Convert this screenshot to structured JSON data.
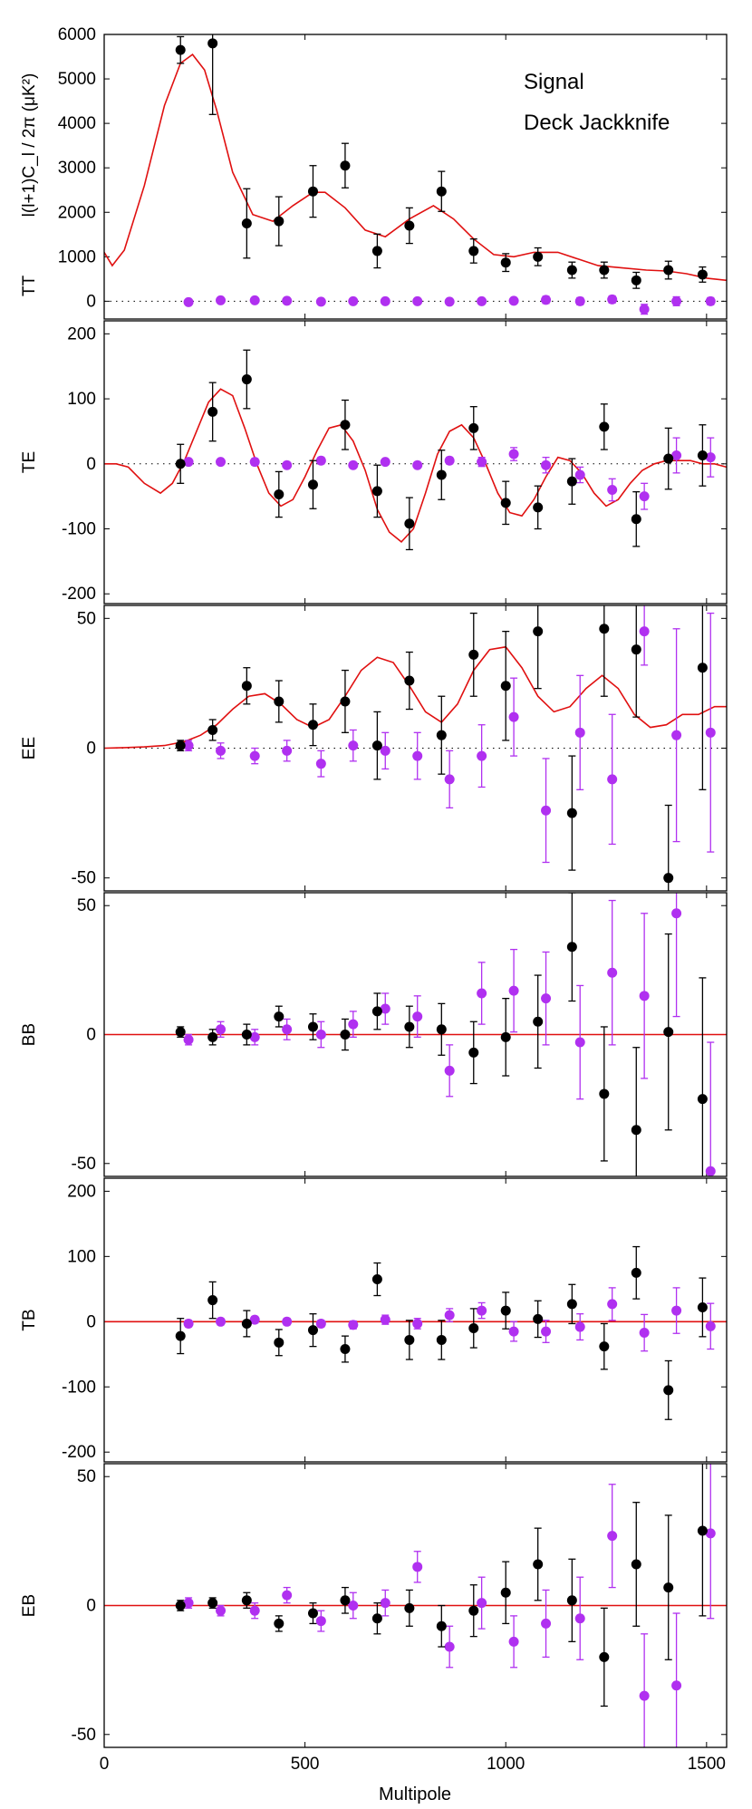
{
  "colors": {
    "signal": "#000000",
    "jackknife": "#b030f0",
    "model": "#e01010"
  },
  "legend": {
    "signal": "Signal",
    "jackknife": "Deck Jackknife"
  },
  "x_axis": {
    "label": "Multipole",
    "ticks": [
      0,
      500,
      1000,
      1500
    ],
    "xlim": [
      0,
      1550
    ]
  },
  "chart_data": [
    {
      "type": "scatter",
      "name": "TT",
      "ylabel_prefix": "TT",
      "ylabel_unit": "l(l+1)C_l / 2π (μK²)",
      "ylim": [
        -400,
        6000
      ],
      "yticks": [
        0,
        1000,
        2000,
        3000,
        4000,
        5000,
        6000
      ],
      "model": {
        "x": [
          0,
          20,
          50,
          100,
          150,
          190,
          220,
          250,
          280,
          320,
          370,
          420,
          470,
          520,
          550,
          600,
          650,
          700,
          760,
          820,
          870,
          920,
          970,
          1020,
          1070,
          1130,
          1180,
          1230,
          1290,
          1350,
          1400,
          1450,
          1500,
          1550
        ],
        "y": [
          1100,
          800,
          1150,
          2600,
          4400,
          5350,
          5550,
          5200,
          4300,
          2900,
          1950,
          1800,
          2150,
          2450,
          2450,
          2100,
          1600,
          1450,
          1850,
          2150,
          1850,
          1400,
          1050,
          1000,
          1100,
          1100,
          950,
          800,
          750,
          700,
          680,
          620,
          520,
          470
        ]
      },
      "signal": {
        "x": [
          190,
          270,
          355,
          435,
          520,
          600,
          680,
          760,
          840,
          920,
          1000,
          1080,
          1165,
          1245,
          1325,
          1405,
          1490
        ],
        "y": [
          5650,
          5800,
          1750,
          1800,
          2470,
          3050,
          1130,
          1700,
          2470,
          1130,
          870,
          1000,
          700,
          700,
          470,
          700,
          600
        ],
        "err": [
          300,
          1600,
          780,
          550,
          580,
          500,
          380,
          400,
          450,
          270,
          200,
          200,
          180,
          180,
          180,
          200,
          170
        ]
      },
      "jackknife": {
        "x": [
          210,
          290,
          375,
          455,
          540,
          620,
          700,
          780,
          860,
          940,
          1020,
          1100,
          1185,
          1265,
          1345,
          1425,
          1510
        ],
        "y": [
          -20,
          20,
          20,
          10,
          -10,
          0,
          0,
          0,
          -10,
          0,
          10,
          30,
          0,
          40,
          -180,
          0,
          0
        ],
        "err": [
          50,
          50,
          50,
          50,
          50,
          50,
          50,
          50,
          50,
          50,
          50,
          80,
          80,
          80,
          110,
          100,
          80
        ]
      }
    },
    {
      "type": "scatter",
      "name": "TE",
      "ylabel_prefix": "TE",
      "ylabel_unit": "",
      "ylim": [
        -215,
        220
      ],
      "yticks": [
        -200,
        -100,
        0,
        100,
        200
      ],
      "model": {
        "x": [
          0,
          30,
          60,
          100,
          140,
          170,
          200,
          230,
          260,
          290,
          320,
          350,
          380,
          410,
          440,
          470,
          500,
          530,
          560,
          590,
          620,
          650,
          680,
          710,
          740,
          770,
          800,
          830,
          860,
          890,
          920,
          950,
          980,
          1010,
          1040,
          1070,
          1100,
          1130,
          1160,
          1190,
          1220,
          1250,
          1280,
          1310,
          1340,
          1370,
          1400,
          1430,
          1460,
          1490,
          1520,
          1550
        ],
        "y": [
          0,
          0,
          -5,
          -30,
          -45,
          -30,
          5,
          50,
          95,
          115,
          105,
          55,
          0,
          -45,
          -65,
          -55,
          -20,
          20,
          55,
          60,
          35,
          -10,
          -70,
          -105,
          -120,
          -100,
          -45,
          15,
          50,
          60,
          40,
          0,
          -45,
          -75,
          -80,
          -55,
          -20,
          10,
          5,
          -15,
          -45,
          -65,
          -55,
          -30,
          -10,
          0,
          5,
          5,
          5,
          0,
          0,
          -5
        ]
      },
      "signal": {
        "x": [
          190,
          270,
          355,
          435,
          520,
          600,
          680,
          760,
          840,
          920,
          1000,
          1080,
          1165,
          1245,
          1325,
          1405,
          1490
        ],
        "y": [
          0,
          80,
          130,
          -47,
          -32,
          60,
          -42,
          -92,
          -17,
          55,
          -60,
          -67,
          -27,
          57,
          -85,
          8,
          13
        ],
        "err": [
          30,
          45,
          45,
          35,
          37,
          38,
          40,
          40,
          38,
          33,
          33,
          33,
          35,
          35,
          42,
          47,
          47
        ]
      },
      "jackknife": {
        "x": [
          210,
          290,
          375,
          455,
          540,
          620,
          700,
          780,
          860,
          940,
          1020,
          1100,
          1185,
          1265,
          1345,
          1425,
          1510
        ],
        "y": [
          3,
          3,
          3,
          -2,
          5,
          -2,
          3,
          -2,
          5,
          3,
          15,
          -2,
          -17,
          -40,
          -50,
          13,
          10
        ],
        "err": [
          4,
          4,
          5,
          4,
          5,
          4,
          4,
          4,
          5,
          7,
          10,
          12,
          12,
          17,
          20,
          27,
          30
        ]
      }
    },
    {
      "type": "scatter",
      "name": "EE",
      "ylabel_prefix": "EE",
      "ylabel_unit": "",
      "ylim": [
        -55,
        55
      ],
      "yticks": [
        -50,
        0,
        50
      ],
      "model": {
        "x": [
          0,
          50,
          100,
          150,
          200,
          240,
          280,
          320,
          360,
          400,
          440,
          480,
          520,
          560,
          600,
          640,
          680,
          720,
          760,
          800,
          840,
          880,
          920,
          960,
          1000,
          1040,
          1080,
          1120,
          1160,
          1200,
          1240,
          1280,
          1320,
          1360,
          1400,
          1440,
          1480,
          1520,
          1550
        ],
        "y": [
          0,
          0.2,
          0.5,
          1,
          2.5,
          5,
          9,
          15,
          20,
          21,
          17,
          11,
          8,
          11,
          20,
          30,
          35,
          33,
          24,
          14,
          10,
          17,
          30,
          38,
          39,
          31,
          20,
          14,
          16,
          23,
          28,
          23,
          13,
          8,
          9,
          13,
          13,
          16,
          16
        ]
      },
      "signal": {
        "x": [
          190,
          270,
          355,
          435,
          520,
          600,
          680,
          760,
          840,
          920,
          1000,
          1080,
          1165,
          1245,
          1325,
          1405,
          1490
        ],
        "y": [
          1,
          7,
          24,
          18,
          9,
          18,
          1,
          26,
          5,
          36,
          24,
          45,
          -25,
          46,
          38,
          -50,
          31
        ],
        "err": [
          2,
          4,
          7,
          8,
          8,
          12,
          13,
          11,
          15,
          16,
          21,
          22,
          22,
          26,
          26,
          28,
          47
        ]
      },
      "jackknife": {
        "x": [
          210,
          290,
          375,
          455,
          540,
          620,
          700,
          780,
          860,
          940,
          1020,
          1100,
          1185,
          1265,
          1345,
          1425,
          1510
        ],
        "y": [
          1,
          -1,
          -3,
          -1,
          -6,
          1,
          -1,
          -3,
          -12,
          -3,
          12,
          -24,
          6,
          -12,
          45,
          5,
          6
        ],
        "err": [
          2,
          3,
          3,
          4,
          5,
          6,
          7,
          9,
          11,
          12,
          15,
          20,
          22,
          25,
          13,
          41,
          46
        ]
      }
    },
    {
      "type": "scatter",
      "name": "BB",
      "ylabel_prefix": "BB",
      "ylabel_unit": "",
      "ylim": [
        -55,
        55
      ],
      "yticks": [
        -50,
        0,
        50
      ],
      "model": {
        "x": [
          0,
          1550
        ],
        "y": [
          0,
          0
        ]
      },
      "signal": {
        "x": [
          190,
          270,
          355,
          435,
          520,
          600,
          680,
          760,
          840,
          920,
          1000,
          1080,
          1165,
          1245,
          1325,
          1405,
          1490
        ],
        "y": [
          1,
          -1,
          0,
          7,
          3,
          0,
          9,
          3,
          2,
          -7,
          -1,
          5,
          34,
          -23,
          -37,
          1,
          -25
        ],
        "err": [
          2,
          3,
          4,
          4,
          5,
          6,
          7,
          8,
          10,
          12,
          15,
          18,
          21,
          26,
          32,
          38,
          47
        ]
      },
      "jackknife": {
        "x": [
          210,
          290,
          375,
          455,
          540,
          620,
          700,
          780,
          860,
          940,
          1020,
          1100,
          1185,
          1265,
          1345,
          1425,
          1510
        ],
        "y": [
          -2,
          2,
          -1,
          2,
          0,
          4,
          10,
          7,
          -14,
          16,
          17,
          14,
          -3,
          24,
          15,
          47,
          -53
        ],
        "err": [
          2,
          3,
          3,
          4,
          5,
          5,
          6,
          8,
          10,
          12,
          16,
          18,
          22,
          28,
          32,
          40,
          50
        ]
      }
    },
    {
      "type": "scatter",
      "name": "TB",
      "ylabel_prefix": "TB",
      "ylabel_unit": "",
      "ylim": [
        -215,
        220
      ],
      "yticks": [
        -200,
        -100,
        0,
        100,
        200
      ],
      "model": {
        "x": [
          0,
          1550
        ],
        "y": [
          0,
          0
        ]
      },
      "signal": {
        "x": [
          190,
          270,
          355,
          435,
          520,
          600,
          680,
          760,
          840,
          920,
          1000,
          1080,
          1165,
          1245,
          1325,
          1405,
          1490
        ],
        "y": [
          -22,
          33,
          -3,
          -32,
          -13,
          -42,
          65,
          -28,
          -28,
          -10,
          17,
          4,
          27,
          -38,
          75,
          -105,
          22
        ],
        "err": [
          27,
          28,
          20,
          20,
          25,
          20,
          25,
          30,
          30,
          30,
          28,
          28,
          30,
          35,
          40,
          45,
          45
        ]
      },
      "jackknife": {
        "x": [
          210,
          290,
          375,
          455,
          540,
          620,
          700,
          780,
          860,
          940,
          1020,
          1100,
          1185,
          1265,
          1345,
          1425,
          1510
        ],
        "y": [
          -3,
          0,
          3,
          0,
          -3,
          -5,
          3,
          -3,
          10,
          17,
          -15,
          -15,
          -8,
          27,
          -17,
          17,
          -7
        ],
        "err": [
          5,
          5,
          5,
          5,
          5,
          6,
          7,
          8,
          10,
          12,
          15,
          17,
          20,
          25,
          28,
          35,
          35
        ]
      }
    },
    {
      "type": "scatter",
      "name": "EB",
      "ylabel_prefix": "EB",
      "ylabel_unit": "",
      "ylim": [
        -55,
        55
      ],
      "yticks": [
        -50,
        0,
        50
      ],
      "model": {
        "x": [
          0,
          1550
        ],
        "y": [
          0,
          0
        ]
      },
      "signal": {
        "x": [
          190,
          270,
          355,
          435,
          520,
          600,
          680,
          760,
          840,
          920,
          1000,
          1080,
          1165,
          1245,
          1325,
          1405,
          1490
        ],
        "y": [
          0,
          1,
          2,
          -7,
          -3,
          2,
          -5,
          -1,
          -8,
          -2,
          5,
          16,
          2,
          -20,
          16,
          7,
          29
        ],
        "err": [
          2,
          2,
          3,
          3,
          4,
          5,
          6,
          7,
          8,
          10,
          12,
          14,
          16,
          19,
          24,
          28,
          33
        ]
      },
      "jackknife": {
        "x": [
          210,
          290,
          375,
          455,
          540,
          620,
          700,
          780,
          860,
          940,
          1020,
          1100,
          1185,
          1265,
          1345,
          1425,
          1510
        ],
        "y": [
          1,
          -2,
          -2,
          4,
          -6,
          0,
          1,
          15,
          -16,
          1,
          -14,
          -7,
          -5,
          27,
          -35,
          -31,
          28
        ],
        "err": [
          2,
          2,
          3,
          3,
          4,
          5,
          5,
          6,
          8,
          10,
          10,
          13,
          16,
          20,
          24,
          28,
          33
        ]
      }
    }
  ]
}
